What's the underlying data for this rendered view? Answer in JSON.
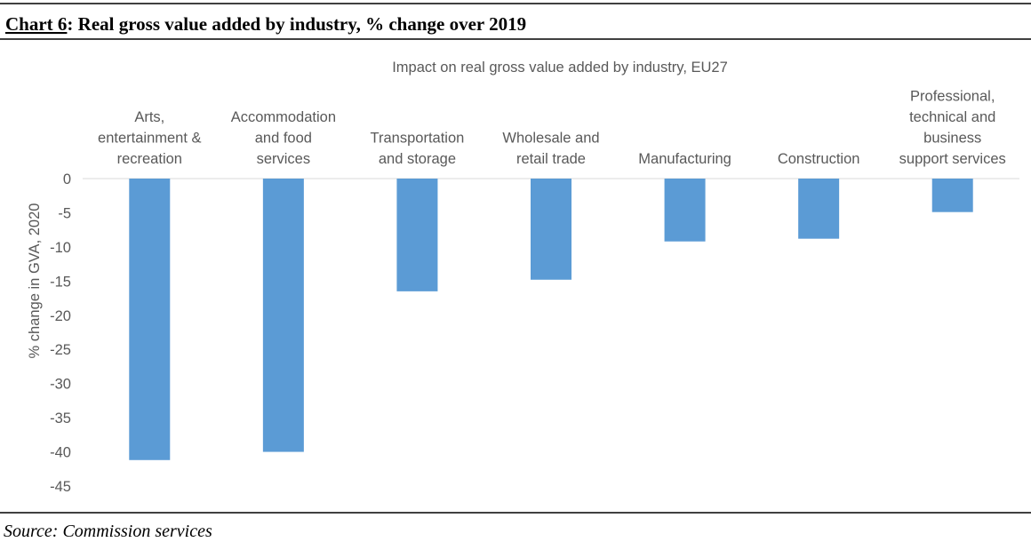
{
  "header": {
    "number": "Chart 6",
    "text": ": Real gross value added by industry, % change over 2019"
  },
  "chart_data": {
    "type": "bar",
    "title": "Impact on real gross value added by industry, EU27",
    "y_label": "% change in GVA, 2020",
    "categories": [
      "Arts,\nentertainment &\nrecreation",
      "Accommodation\nand food\nservices",
      "Transportation\nand storage",
      "Wholesale and\nretail trade",
      "Manufacturing",
      "Construction",
      "Professional,\ntechnical and\nbusiness\nsupport services"
    ],
    "values": [
      -41.2,
      -40.0,
      -16.5,
      -14.8,
      -9.2,
      -8.8,
      -4.9
    ],
    "color": "#5b9bd5",
    "ylim": [
      -45,
      0
    ],
    "yticks": [
      0,
      -5,
      -10,
      -15,
      -20,
      -25,
      -30,
      -35,
      -40,
      -45
    ],
    "grid": false
  },
  "source": "Source: Commission services"
}
